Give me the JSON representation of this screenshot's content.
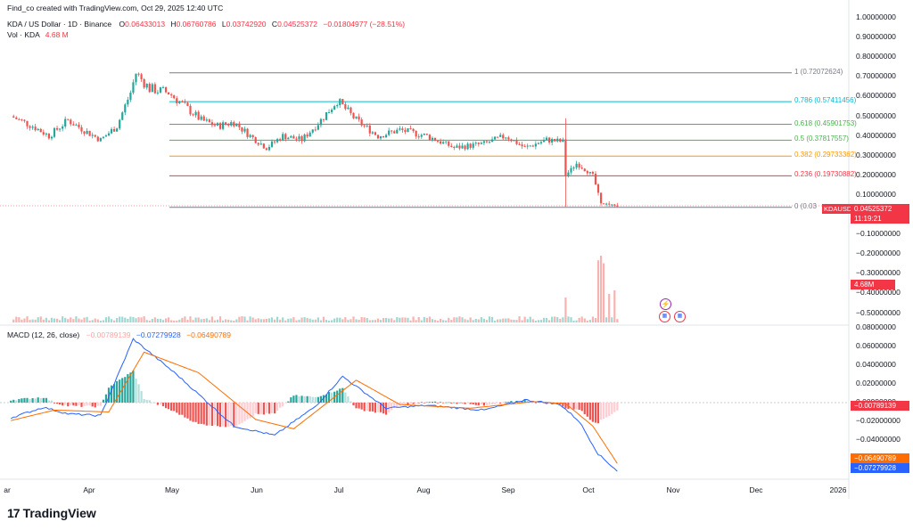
{
  "header": {
    "created_by": "Find_co created with TradingView.com, Oct 29, 2025 12:40 UTC",
    "symbol": "KDA / US Dollar · 1D · Binance",
    "o_label": "O",
    "o_value": "0.06433013",
    "h_label": "H",
    "h_value": "0.06760786",
    "l_label": "L",
    "l_value": "0.03742920",
    "c_label": "C",
    "c_value": "0.04525372",
    "change": "−0.01804977 (−28.51%)",
    "vol_label": "Vol · KDA",
    "vol_value": "4.68 M"
  },
  "macd_header": {
    "label": "MACD (12, 26, close)",
    "hist": "−0.00789139",
    "macd": "−0.07279928",
    "signal": "−0.06490789"
  },
  "price_axis": [
    "1.00000000",
    "0.90000000",
    "0.80000000",
    "0.70000000",
    "0.60000000",
    "0.50000000",
    "0.40000000",
    "0.30000000",
    "0.20000000",
    "0.10000000",
    "−0.10000000",
    "−0.20000000",
    "−0.30000000",
    "−0.40000000",
    "−0.50000000"
  ],
  "macd_axis": [
    "0.08000000",
    "0.06000000",
    "0.04000000",
    "0.02000000",
    "0.00000000",
    "−0.02000000",
    "−0.04000000"
  ],
  "x_labels": [
    "ar",
    "Apr",
    "May",
    "Jun",
    "Jul",
    "Aug",
    "Sep",
    "Oct",
    "Nov",
    "Dec",
    "2026"
  ],
  "tags": {
    "last_price": "0.04525372",
    "countdown": "11:19:21",
    "symbol_tag": "KDAUSD",
    "volume": "4.68M",
    "macd_hist": "−0.00789139",
    "macd_signal": "−0.06490789",
    "macd_line": "−0.07279928"
  },
  "fib_levels": [
    {
      "label": "1 (0.72072624)",
      "value": 0.72072624,
      "color": "#787b86"
    },
    {
      "label": "0.786 (0.57411456)",
      "value": 0.57411456,
      "color": "#00bcd4"
    },
    {
      "label": "0.618 (0.45901753)",
      "value": 0.45901753,
      "color": "#4caf50"
    },
    {
      "label": "0.5 (0.37817557)",
      "value": 0.37817557,
      "color": "#4caf50"
    },
    {
      "label": "0.382 (0.29733362)",
      "value": 0.29733362,
      "color": "#ff9800"
    },
    {
      "label": "0.236 (0.19730882)",
      "value": 0.19730882,
      "color": "#f23645"
    },
    {
      "label": "0 (0.03",
      "value": 0.0374292,
      "color": "#787b86"
    }
  ],
  "brand": "TradingView",
  "colors": {
    "up": "#26a69a",
    "down": "#ef5350",
    "macd_line": "#2962ff",
    "signal_line": "#ff6d00"
  },
  "chart_data": {
    "type": "candlestick",
    "title": "KDA / US Dollar · 1D · Binance",
    "x_labels": [
      "ar",
      "Apr",
      "May",
      "Jun",
      "Jul",
      "Aug",
      "Sep",
      "Oct",
      "Nov",
      "Dec",
      "2026"
    ],
    "ylim": [
      0,
      1.0
    ],
    "price_path": [
      [
        "2025-03-20",
        0.5
      ],
      [
        "2025-03-28",
        0.45
      ],
      [
        "2025-04-03",
        0.4
      ],
      [
        "2025-04-10",
        0.48
      ],
      [
        "2025-04-17",
        0.42
      ],
      [
        "2025-04-22",
        0.38
      ],
      [
        "2025-04-28",
        0.45
      ],
      [
        "2025-05-03",
        0.62
      ],
      [
        "2025-05-05",
        0.72
      ],
      [
        "2025-05-10",
        0.64
      ],
      [
        "2025-05-17",
        0.62
      ],
      [
        "2025-05-23",
        0.55
      ],
      [
        "2025-05-29",
        0.48
      ],
      [
        "2025-06-04",
        0.45
      ],
      [
        "2025-06-10",
        0.47
      ],
      [
        "2025-06-16",
        0.4
      ],
      [
        "2025-06-22",
        0.34
      ],
      [
        "2025-06-28",
        0.4
      ],
      [
        "2025-07-05",
        0.38
      ],
      [
        "2025-07-12",
        0.48
      ],
      [
        "2025-07-18",
        0.58
      ],
      [
        "2025-07-25",
        0.48
      ],
      [
        "2025-08-02",
        0.4
      ],
      [
        "2025-08-10",
        0.43
      ],
      [
        "2025-08-20",
        0.4
      ],
      [
        "2025-08-30",
        0.34
      ],
      [
        "2025-09-10",
        0.36
      ],
      [
        "2025-09-18",
        0.4
      ],
      [
        "2025-09-25",
        0.34
      ],
      [
        "2025-10-03",
        0.38
      ],
      [
        "2025-10-09",
        0.37
      ],
      [
        "2025-10-10",
        0.2
      ],
      [
        "2025-10-14",
        0.26
      ],
      [
        "2025-10-20",
        0.2
      ],
      [
        "2025-10-23",
        0.06
      ],
      [
        "2025-10-29",
        0.045
      ]
    ],
    "fibonacci": [
      {
        "level": 1,
        "value": 0.72072624
      },
      {
        "level": 0.786,
        "value": 0.57411456
      },
      {
        "level": 0.618,
        "value": 0.45901753
      },
      {
        "level": 0.5,
        "value": 0.37817557
      },
      {
        "level": 0.382,
        "value": 0.29733362
      },
      {
        "level": 0.236,
        "value": 0.19730882
      },
      {
        "level": 0,
        "value": 0.0374292
      }
    ],
    "last_close": 0.04525372,
    "macd": {
      "macd": -0.07279928,
      "signal": -0.06490789,
      "hist": -0.00789139,
      "ylim": [
        -0.05,
        0.08
      ]
    }
  }
}
